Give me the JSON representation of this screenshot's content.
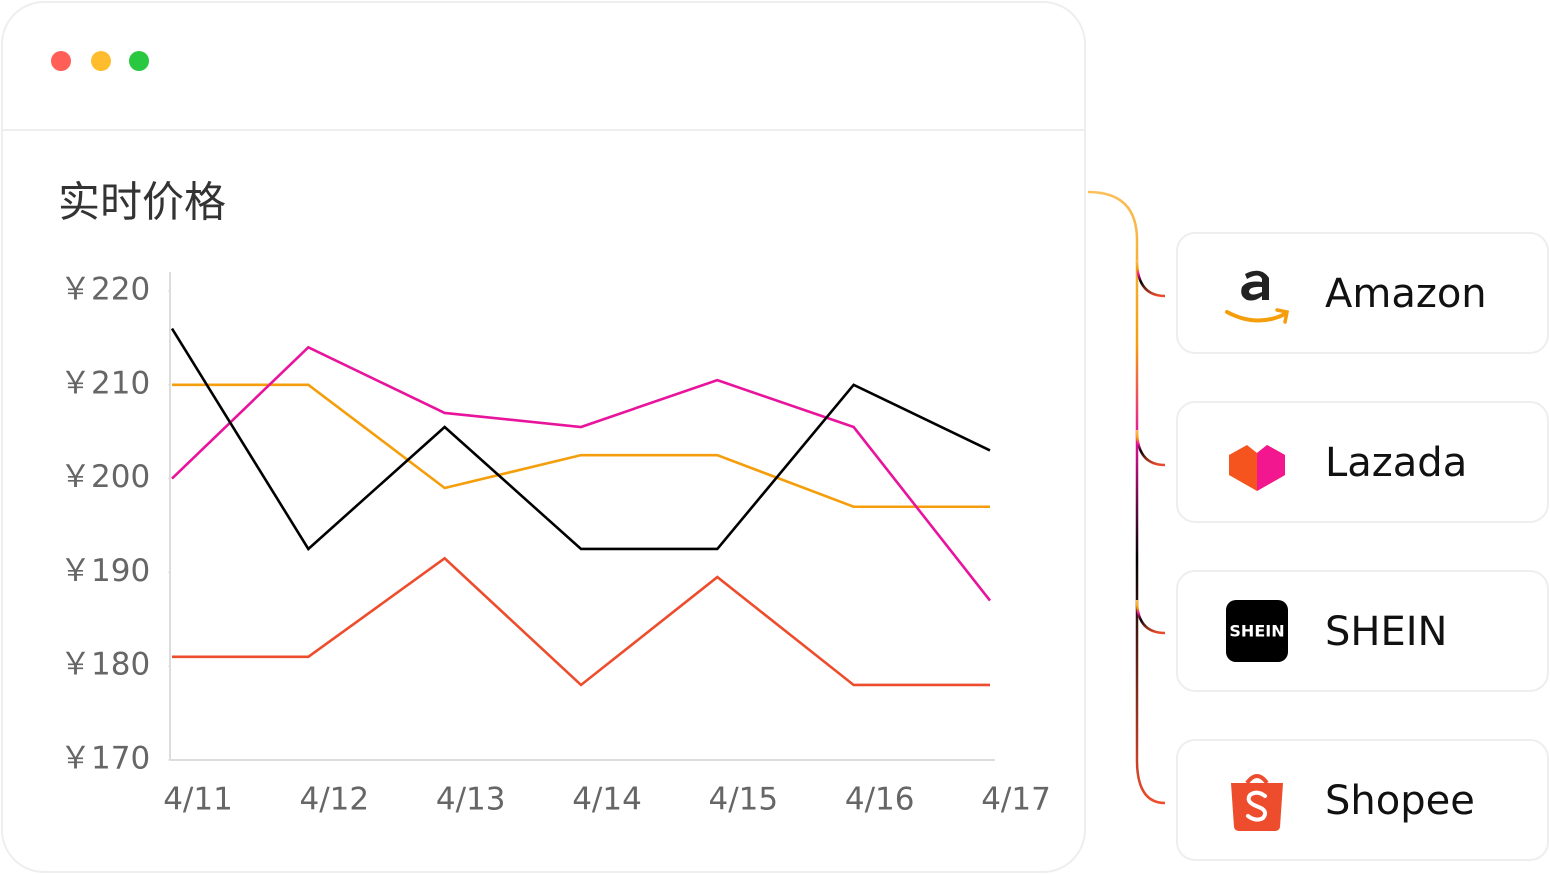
{
  "chart_data": {
    "type": "line",
    "title": "实时价格",
    "categories": [
      "4/11",
      "4/12",
      "4/13",
      "4/14",
      "4/15",
      "4/16",
      "4/17"
    ],
    "series": [
      {
        "name": "Amazon",
        "color": "#f59e0b",
        "values": [
          210,
          210,
          199,
          202.5,
          202.5,
          197,
          197
        ]
      },
      {
        "name": "Lazada",
        "color": "#e8149c",
        "values": [
          200,
          214,
          207,
          205.5,
          210.5,
          205.5,
          187
        ]
      },
      {
        "name": "SHEIN",
        "color": "#000000",
        "values": [
          216,
          192.5,
          205.5,
          192.5,
          192.5,
          210,
          203
        ]
      },
      {
        "name": "Shopee",
        "color": "#ee4d2d",
        "values": [
          181,
          181,
          191.5,
          178,
          189.5,
          178,
          178
        ]
      }
    ],
    "ylim": [
      170,
      220
    ],
    "yticks": [
      {
        "value": 170,
        "label": "￥170"
      },
      {
        "value": 180,
        "label": "￥180"
      },
      {
        "value": 190,
        "label": "￥190"
      },
      {
        "value": 200,
        "label": "￥200"
      },
      {
        "value": 210,
        "label": "￥210"
      },
      {
        "value": 220,
        "label": "￥220"
      }
    ]
  }
}
